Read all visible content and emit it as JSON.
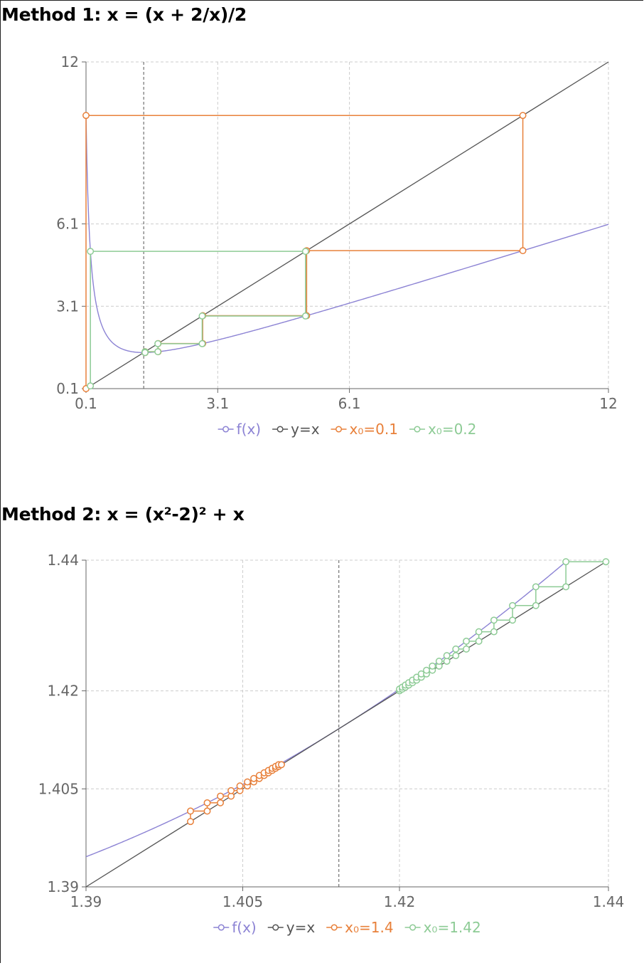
{
  "charts": [
    {
      "title": "Method 1: x = (x + 2/x)/2",
      "chart_data": {
        "type": "line",
        "function": "(x + 2/x)/2",
        "xlim": [
          0.1,
          12
        ],
        "ylim": [
          0.1,
          12
        ],
        "xticks": [
          "0.1",
          "3.1",
          "6.1",
          "12"
        ],
        "yticks": [
          "0.1",
          "3.1",
          "6.1",
          "12"
        ],
        "grid": true,
        "fixed_point_marker_x": 1.414,
        "legend_position": "bottom-center",
        "series": [
          {
            "name": "f(x)",
            "color": "#8c83d4"
          },
          {
            "name": "y=x",
            "color": "#555555"
          },
          {
            "name": "x₀=0.1",
            "color": "#e8803a",
            "cobweb": [
              [
                0.1,
                0.1
              ],
              [
                0.1,
                10.05
              ],
              [
                10.05,
                10.05
              ],
              [
                10.05,
                5.125
              ],
              [
                5.125,
                5.125
              ],
              [
                5.125,
                2.758
              ],
              [
                2.758,
                2.758
              ],
              [
                2.758,
                1.742
              ],
              [
                1.742,
                1.742
              ],
              [
                1.742,
                1.445
              ],
              [
                1.445,
                1.445
              ],
              [
                1.445,
                1.414
              ]
            ]
          },
          {
            "name": "x₀=0.2",
            "color": "#8dcb95",
            "cobweb": [
              [
                0.2,
                0.2
              ],
              [
                0.2,
                5.1
              ],
              [
                5.1,
                5.1
              ],
              [
                5.1,
                2.746
              ],
              [
                2.746,
                2.746
              ],
              [
                2.746,
                1.737
              ],
              [
                1.737,
                1.737
              ],
              [
                1.737,
                1.444
              ],
              [
                1.444,
                1.444
              ],
              [
                1.444,
                1.414
              ]
            ]
          }
        ]
      }
    },
    {
      "title": "Method 2: x = (x²-2)² + x",
      "chart_data": {
        "type": "line",
        "function": "(x^2-2)^2 + x",
        "xlim": [
          1.39,
          1.44
        ],
        "ylim": [
          1.39,
          1.44
        ],
        "xticks": [
          "1.39",
          "1.405",
          "1.42",
          "1.44"
        ],
        "yticks": [
          "1.39",
          "1.405",
          "1.42",
          "1.44"
        ],
        "grid": true,
        "fixed_point_marker_x": 1.4142,
        "legend_position": "bottom-center",
        "series": [
          {
            "name": "f(x)",
            "color": "#8c83d4"
          },
          {
            "name": "y=x",
            "color": "#555555"
          },
          {
            "name": "x₀=1.4",
            "color": "#e8803a",
            "x0": 1.4,
            "iterations": 13
          },
          {
            "name": "x₀=1.42",
            "color": "#8dcb95",
            "x0": 1.42,
            "iterations": 18
          }
        ]
      }
    }
  ]
}
